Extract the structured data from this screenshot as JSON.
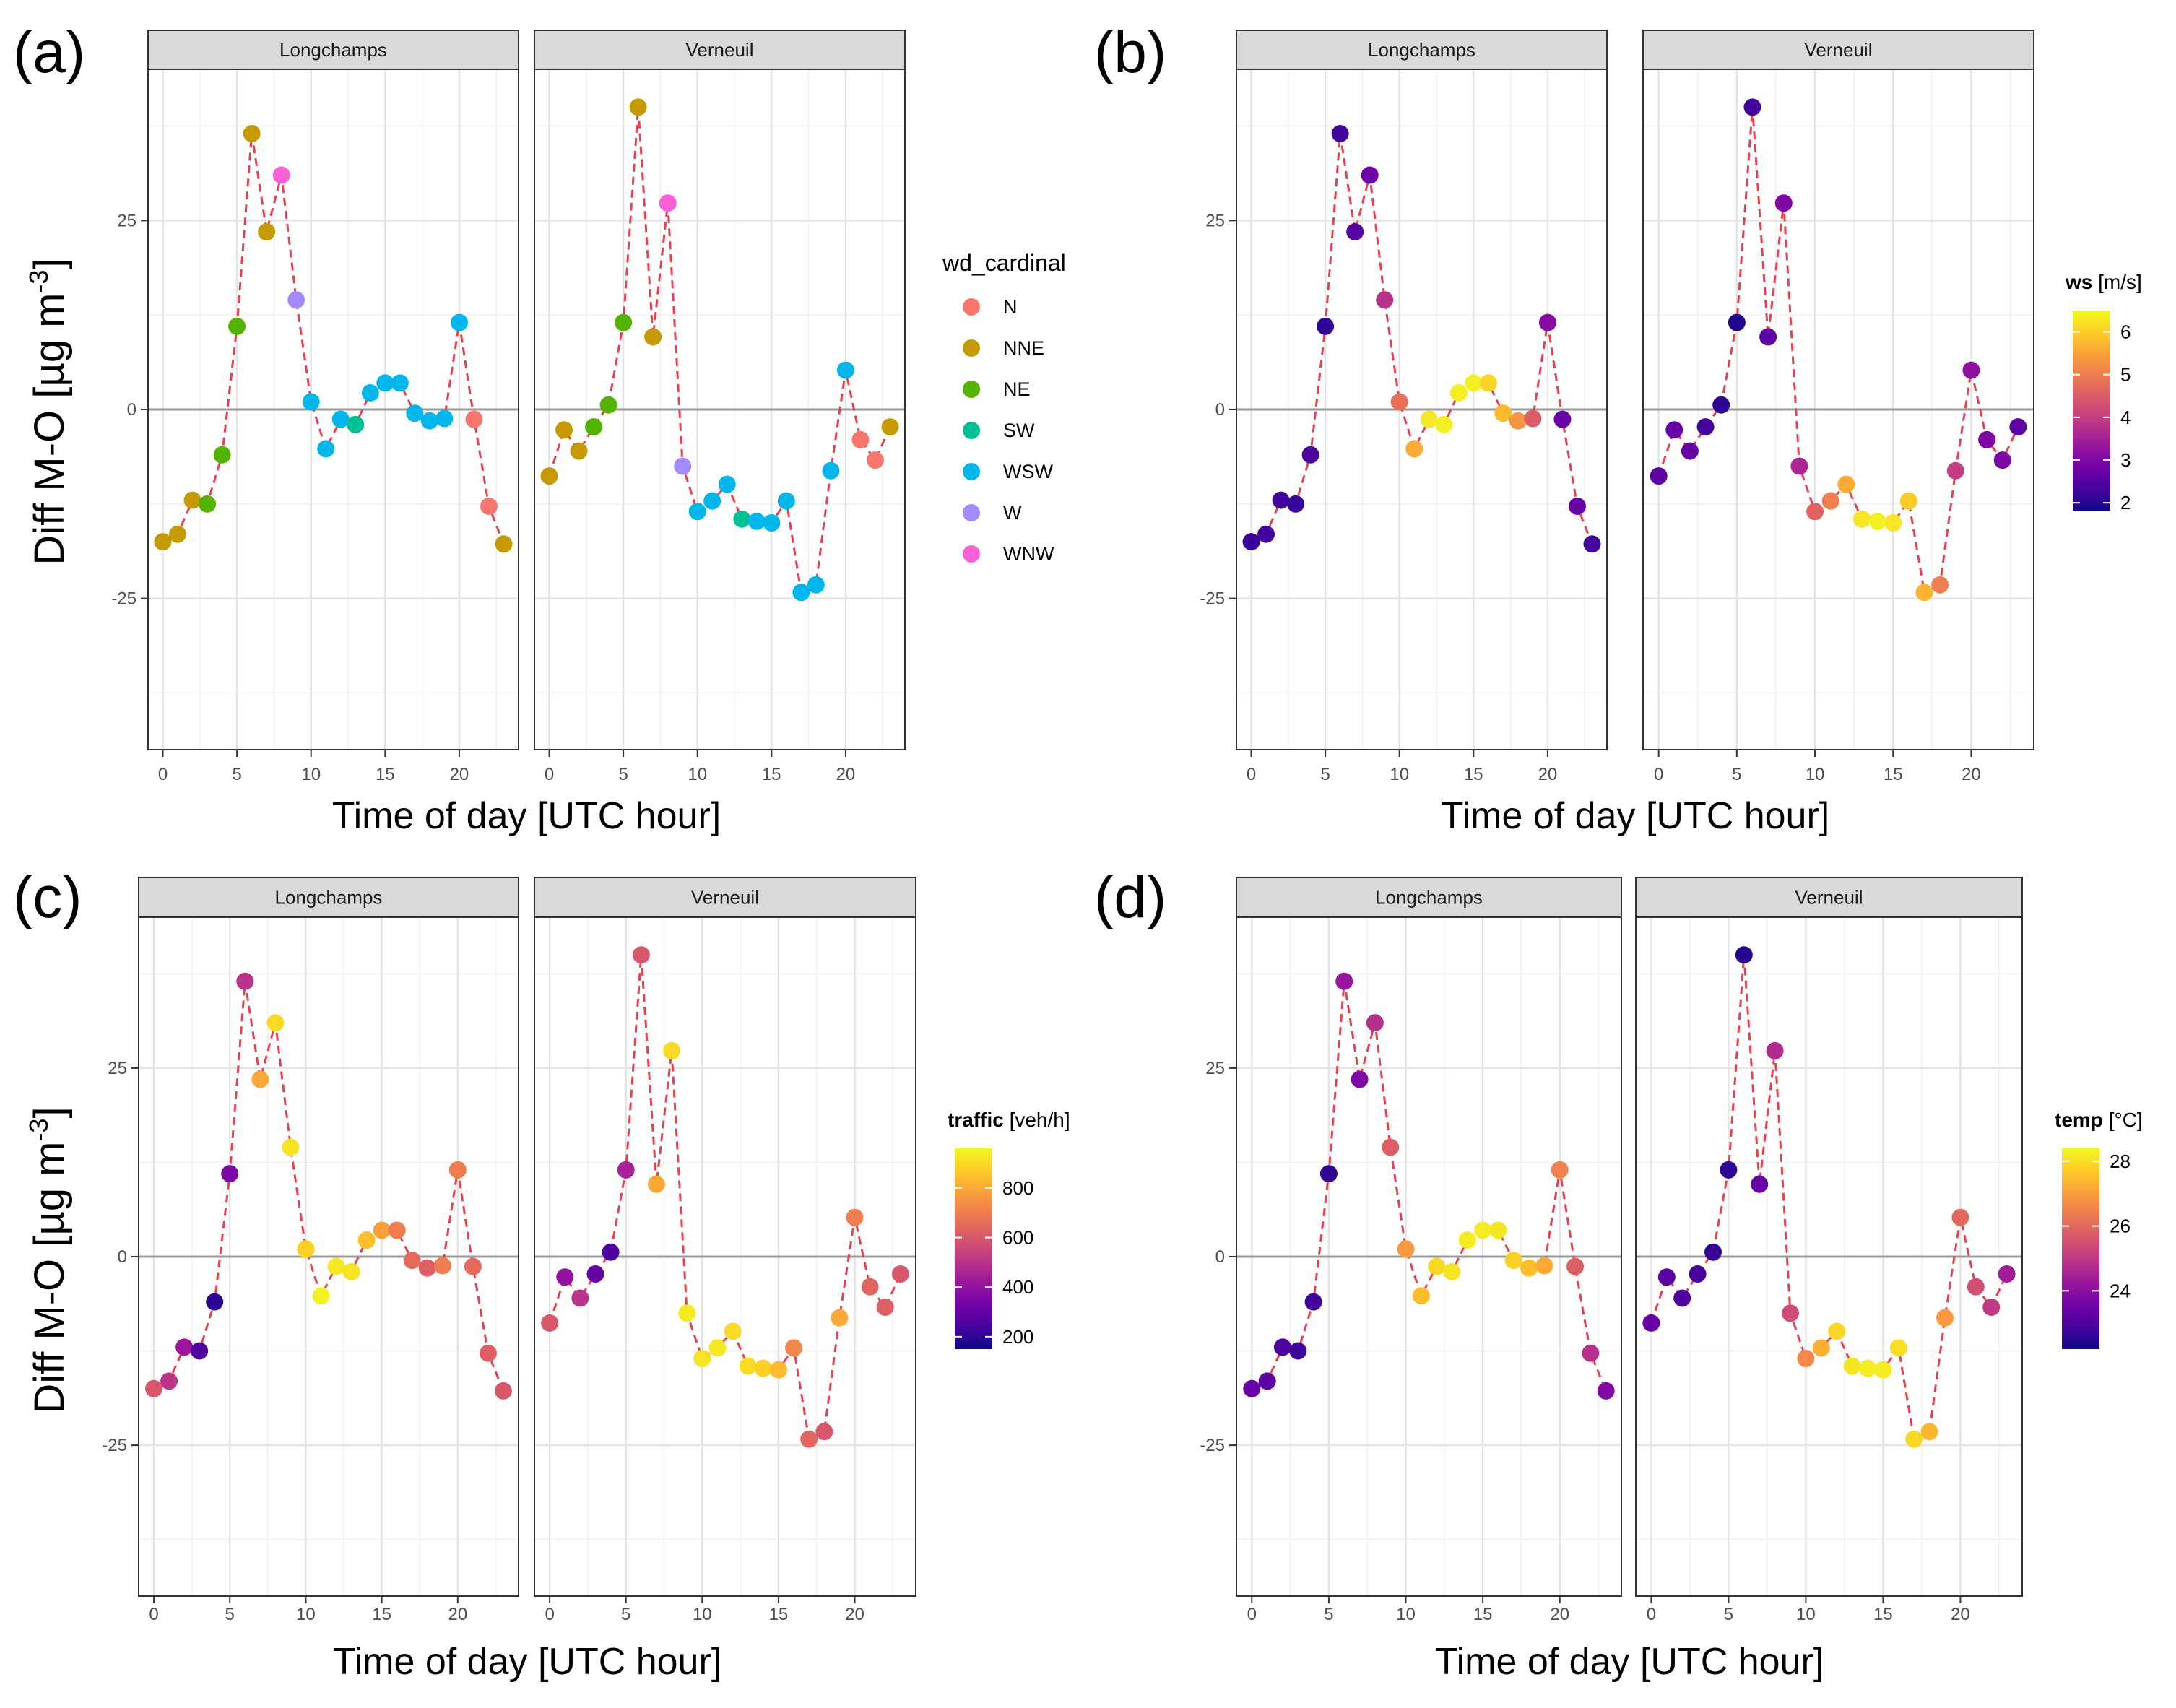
{
  "chart_data": {
    "type": "scatter",
    "shared": {
      "x": [
        0,
        1,
        2,
        3,
        4,
        5,
        6,
        7,
        8,
        9,
        10,
        11,
        12,
        13,
        14,
        15,
        16,
        17,
        18,
        19,
        20,
        21,
        22,
        23
      ],
      "xticks": [
        0,
        5,
        10,
        15,
        20
      ],
      "xtick_labels": [
        "0",
        "5",
        "10",
        "15",
        "20"
      ],
      "xlim": [
        -1,
        24
      ],
      "ylim": [
        -45,
        45
      ],
      "yticks": [
        -25,
        0,
        25
      ],
      "ytick_labels": [
        "-25",
        "0",
        "25"
      ],
      "xlabel": "Time of day [UTC hour]",
      "ylabel": "Diff M-O [µg m",
      "ylabel_sup": "-3",
      "ylabel_end": "]",
      "facets": [
        {
          "name": "Longchamps",
          "y": [
            -17.5,
            -16.5,
            -12,
            -12.5,
            -6,
            11,
            36.5,
            23.5,
            31,
            14.5,
            1,
            -5.2,
            -1.3,
            -2,
            2.2,
            3.5,
            3.5,
            -0.5,
            -1.5,
            -1.2,
            11.5,
            -1.3,
            -12.8,
            -17.8
          ]
        },
        {
          "name": "Verneuil",
          "y": [
            -8.8,
            -2.7,
            -5.5,
            -2.3,
            0.6,
            11.5,
            40,
            9.6,
            27.3,
            -7.5,
            -13.5,
            -12.1,
            -9.9,
            -14.5,
            -14.8,
            -15,
            -12.1,
            -24.2,
            -23.2,
            -8.1,
            5.2,
            -4,
            -6.7,
            -2.3
          ]
        }
      ]
    },
    "panels": [
      {
        "label": "(a)",
        "color_by": "wd_cardinal",
        "legend": {
          "type": "discrete",
          "title": "wd_cardinal",
          "entries": [
            {
              "label": "N",
              "color": "#F8766D"
            },
            {
              "label": "NNE",
              "color": "#C49A00"
            },
            {
              "label": "NE",
              "color": "#53B400"
            },
            {
              "label": "SW",
              "color": "#00C094"
            },
            {
              "label": "WSW",
              "color": "#00B6EB"
            },
            {
              "label": "W",
              "color": "#A58AFF"
            },
            {
              "label": "WNW",
              "color": "#FB61D7"
            }
          ]
        },
        "colors": [
          [
            "NNE",
            "NNE",
            "NNE",
            "NE",
            "NE",
            "NE",
            "NNE",
            "NNE",
            "WNW",
            "W",
            "WSW",
            "WSW",
            "WSW",
            "SW",
            "WSW",
            "WSW",
            "WSW",
            "WSW",
            "WSW",
            "WSW",
            "WSW",
            "N",
            "N",
            "NNE"
          ],
          [
            "NNE",
            "NNE",
            "NNE",
            "NE",
            "NE",
            "NE",
            "NNE",
            "NNE",
            "WNW",
            "W",
            "WSW",
            "WSW",
            "WSW",
            "SW",
            "WSW",
            "WSW",
            "WSW",
            "WSW",
            "WSW",
            "WSW",
            "WSW",
            "N",
            "N",
            "NNE"
          ]
        ]
      },
      {
        "label": "(b)",
        "color_by": "ws",
        "legend": {
          "type": "continuous",
          "title": "ws",
          "unit": "[m/s]",
          "range": [
            1.8,
            6.5
          ],
          "ticks": [
            2,
            3,
            4,
            5,
            6
          ],
          "tick_labels": [
            "2",
            "3",
            "4",
            "5",
            "6"
          ]
        },
        "values": [
          [
            2.2,
            2.3,
            2.3,
            2.2,
            2.4,
            2.1,
            2.3,
            2.5,
            2.8,
            3.8,
            4.8,
            5.6,
            6.3,
            6.4,
            6.4,
            6.4,
            6.1,
            5.8,
            5.3,
            4.5,
            3.1,
            2.7,
            2.7,
            2.3
          ],
          [
            2.6,
            2.7,
            2.7,
            2.3,
            2.1,
            2.0,
            2.3,
            2.6,
            3.0,
            3.6,
            4.6,
            5.0,
            5.6,
            6.3,
            6.4,
            6.3,
            6.0,
            5.7,
            5.0,
            4.0,
            3.2,
            3.0,
            3.0,
            2.6
          ]
        ]
      },
      {
        "label": "(c)",
        "color_by": "traffic",
        "legend": {
          "type": "continuous",
          "title": "traffic",
          "unit": "[veh/h]",
          "range": [
            150,
            960
          ],
          "ticks": [
            200,
            400,
            600,
            800
          ],
          "tick_labels": [
            "200",
            "400",
            "600",
            "800"
          ]
        },
        "values": [
          [
            600,
            500,
            420,
            260,
            200,
            350,
            500,
            800,
            900,
            920,
            880,
            950,
            930,
            920,
            850,
            780,
            700,
            650,
            620,
            700,
            700,
            650,
            620,
            600
          ],
          [
            600,
            400,
            500,
            300,
            250,
            450,
            600,
            800,
            900,
            930,
            920,
            930,
            900,
            900,
            880,
            840,
            720,
            640,
            600,
            800,
            700,
            640,
            620,
            600
          ]
        ]
      },
      {
        "label": "(d)",
        "color_by": "temp",
        "legend": {
          "type": "continuous",
          "title": "temp",
          "unit": "[°C]",
          "range": [
            22.2,
            28.4
          ],
          "ticks": [
            24,
            26,
            28
          ],
          "tick_labels": [
            "24",
            "26",
            "28"
          ]
        },
        "values": [
          [
            23.4,
            23.2,
            23.0,
            22.8,
            22.8,
            22.6,
            24.2,
            23.8,
            24.8,
            25.8,
            26.9,
            27.5,
            27.9,
            28.1,
            28.2,
            28.2,
            28.1,
            27.8,
            27.5,
            27.2,
            26.5,
            25.8,
            24.8,
            23.8
          ],
          [
            23.4,
            23.2,
            23.0,
            22.9,
            22.7,
            22.6,
            22.5,
            23.4,
            24.7,
            25.4,
            26.6,
            27.3,
            27.9,
            28.1,
            28.2,
            28.2,
            28.0,
            27.9,
            27.4,
            26.9,
            26.0,
            25.5,
            25.0,
            24.4
          ]
        ]
      }
    ]
  }
}
